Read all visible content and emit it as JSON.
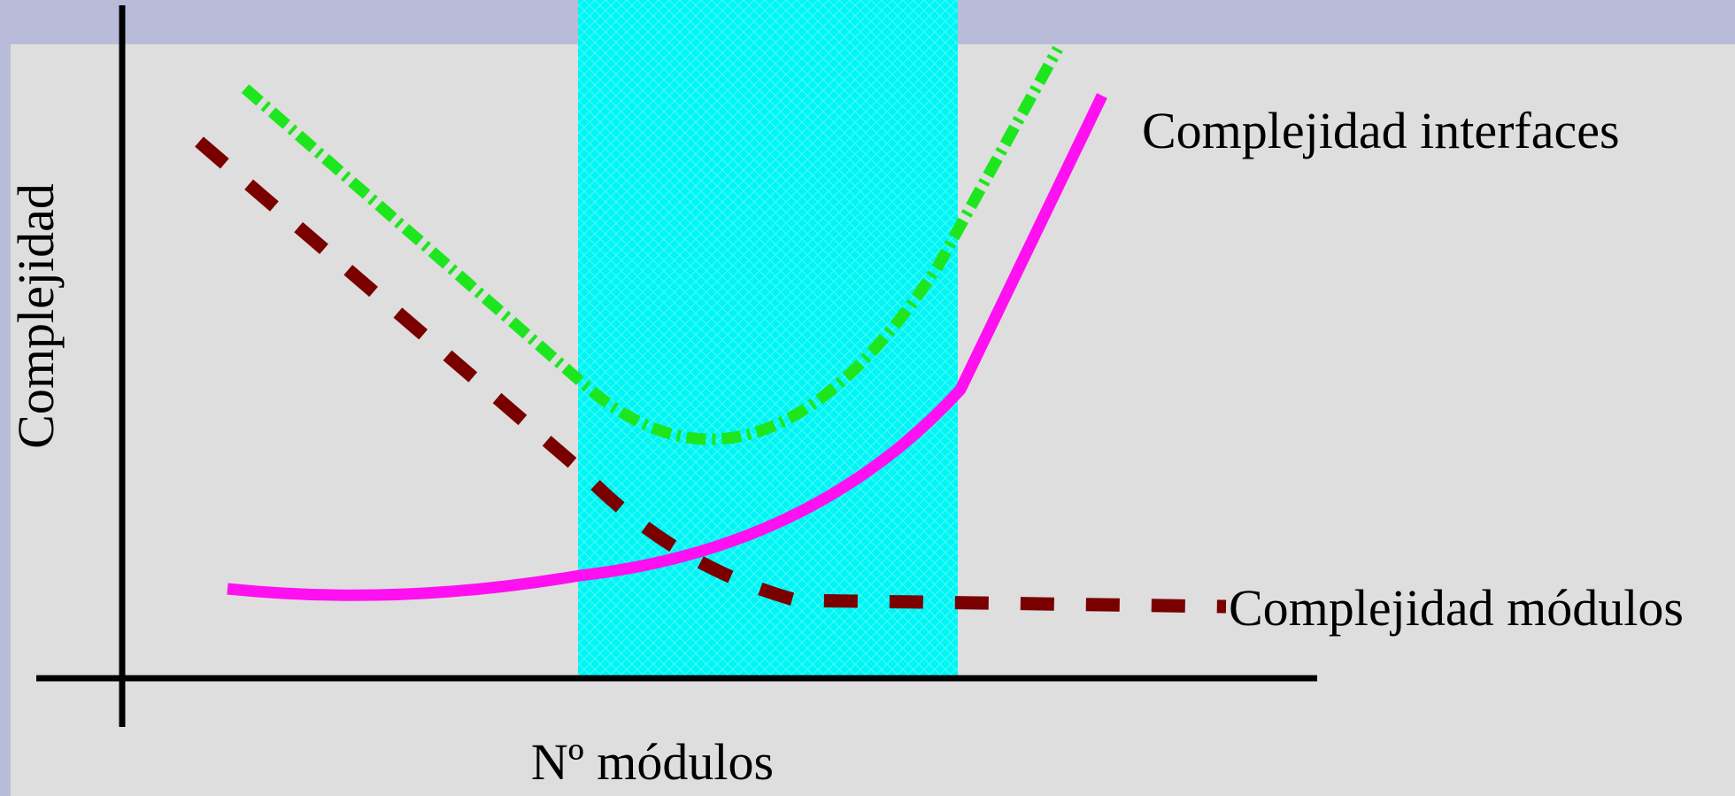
{
  "diagram": {
    "y_axis_label": "Complejidad",
    "x_axis_label": "Nº módulos",
    "curve_labels": {
      "interfaces": "Complejidad interfaces",
      "modules": "Complejidad módulos"
    },
    "colors": {
      "background_top_band": "#b8bcd8",
      "panel": "#dedede",
      "total_curve": "#1ee61e",
      "modules_curve": "#7a0000",
      "interfaces_curve": "#ff10f0",
      "highlight_region": "#00f5f5",
      "axes": "#000000"
    }
  }
}
